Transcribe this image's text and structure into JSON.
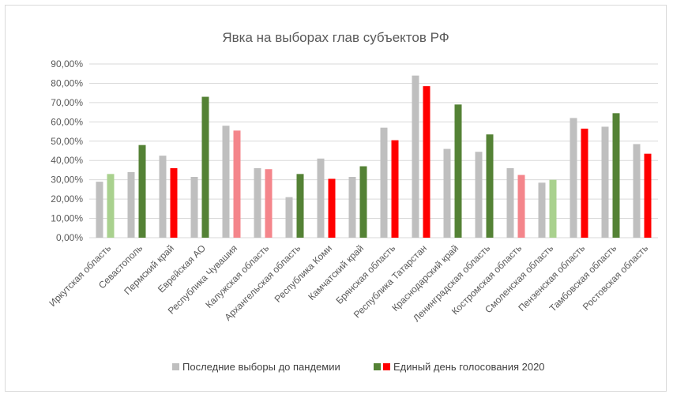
{
  "chart_data": {
    "type": "bar",
    "title": "Явка на выборах глав субъектов РФ",
    "xlabel": "",
    "ylabel": "",
    "ylim": [
      0,
      90
    ],
    "y_ticks": [
      "0,00%",
      "10,00%",
      "20,00%",
      "30,00%",
      "40,00%",
      "50,00%",
      "60,00%",
      "70,00%",
      "80,00%",
      "90,00%"
    ],
    "grid": true,
    "legend_position": "bottom",
    "categories": [
      "Иркутская область",
      "Севастополь",
      "Пермский край",
      "Еврейская АО",
      "Республика Чувашия",
      "Калужская область",
      "Архангельская область",
      "Республика Коми",
      "Камчатский край",
      "Брянская область",
      "Республика Татарстан",
      "Краснодарский край",
      "Ленинградская область",
      "Костромская область",
      "Смоленская область",
      "Пензенская область",
      "Тамбовская область",
      "Ростовская область"
    ],
    "series": [
      {
        "name": "Последние выборы до пандемии",
        "values": [
          29,
          34,
          42.5,
          31.5,
          58,
          36,
          21,
          41,
          31.5,
          57,
          84,
          46,
          44.5,
          36,
          28.5,
          62,
          57.5,
          48.5
        ]
      },
      {
        "name": "Единый день голосования 2020",
        "values": [
          33,
          48,
          36,
          73,
          55.5,
          35.5,
          33,
          30.5,
          37,
          50.5,
          78.5,
          69,
          53.5,
          32.5,
          30,
          56.5,
          64.5,
          43.5
        ]
      }
    ],
    "bar_colors_2020": [
      "#a9d18e",
      "#548235",
      "#ff0000",
      "#548235",
      "#f4858b",
      "#f4858b",
      "#548235",
      "#ff0000",
      "#548235",
      "#ff0000",
      "#ff0000",
      "#548235",
      "#548235",
      "#f4858b",
      "#a9d18e",
      "#ff0000",
      "#548235",
      "#ff0000"
    ],
    "legend": [
      {
        "label": "Последние выборы до пандемии",
        "colors": [
          "#bfbfbf"
        ]
      },
      {
        "label": "Единый день голосования 2020",
        "colors": [
          "#548235",
          "#ff0000"
        ]
      }
    ],
    "colors": {
      "before": "#bfbfbf",
      "green": "#548235",
      "red": "#ff0000"
    }
  }
}
